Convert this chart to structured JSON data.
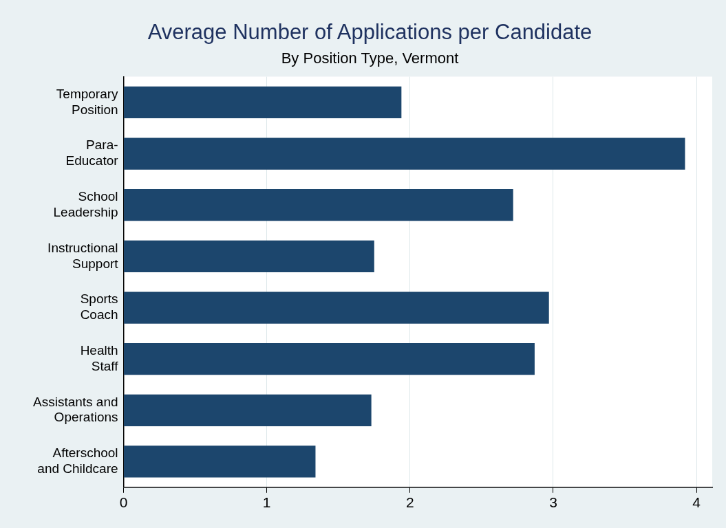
{
  "chart_data": {
    "type": "bar",
    "orientation": "horizontal",
    "title": "Average Number of Applications per Candidate",
    "subtitle": "By Position Type, Vermont",
    "categories": [
      "Temporary\nPosition",
      "Para-\nEducator",
      "School\nLeadership",
      "Instructional\nSupport",
      "Sports\nCoach",
      "Health\nStaff",
      "Assistants and\nOperations",
      "Afterschool\nand Childcare"
    ],
    "values": [
      1.94,
      3.92,
      2.72,
      1.75,
      2.97,
      2.87,
      1.73,
      1.34
    ],
    "color": "#1c466d",
    "xlim": [
      0,
      4.11
    ],
    "xticks": [
      0,
      1,
      2,
      3,
      4
    ],
    "grid": "x",
    "legend": false
  }
}
